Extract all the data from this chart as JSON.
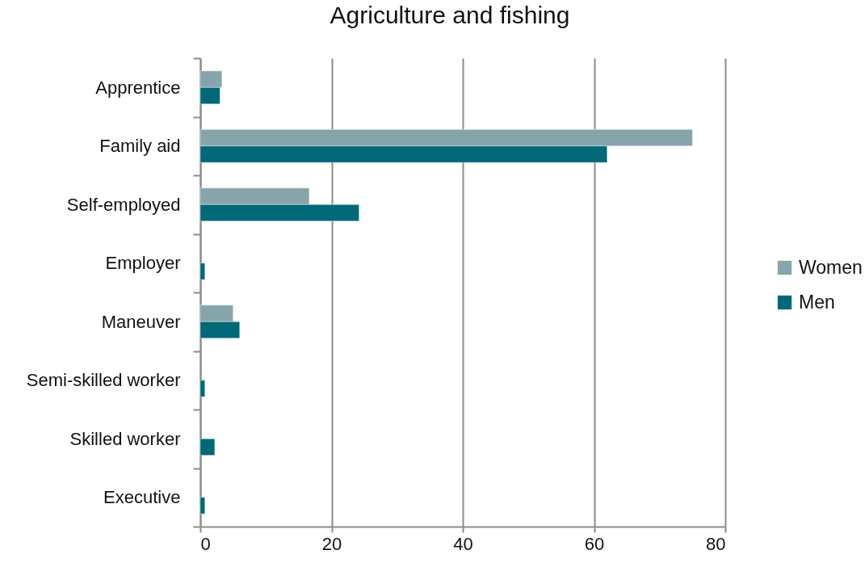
{
  "chart_data": {
    "type": "bar",
    "orientation": "horizontal",
    "title": "Agriculture and fishing",
    "categories": [
      "Apprentice",
      "Family aid",
      "Self-employed",
      "Employer",
      "Maneuver",
      "Semi-skilled worker",
      "Skilled worker",
      "Executive"
    ],
    "series": [
      {
        "name": "Women",
        "color": "#86a4ac",
        "values": [
          3.3,
          75,
          16.6,
          null,
          5.0,
          null,
          null,
          null
        ]
      },
      {
        "name": "Men",
        "color": "#006877",
        "values": [
          3.0,
          62,
          24.2,
          0.7,
          6.0,
          0.7,
          2.2,
          0.7
        ]
      }
    ],
    "xlim": [
      0,
      80
    ],
    "xticks": [
      0,
      20,
      40,
      60,
      80
    ],
    "grid": "x",
    "legend": "right"
  }
}
